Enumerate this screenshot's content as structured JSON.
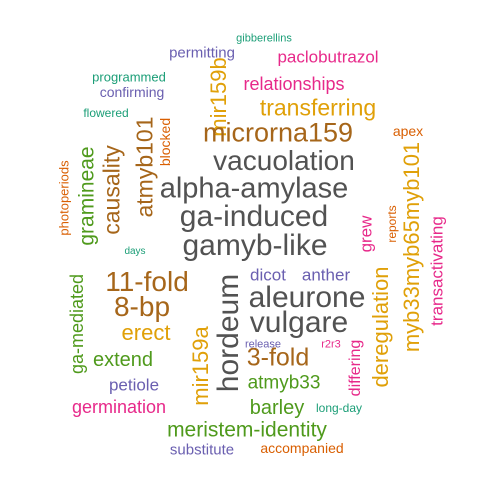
{
  "palette": {
    "gray": "#525252",
    "brown": "#a6661a",
    "gold": "#e0a008",
    "green": "#4f9a1c",
    "teal": "#1b9e77",
    "purple": "#6a5fb0",
    "magenta": "#e7298a",
    "orange": "#d95f02"
  },
  "words": [
    {
      "text": "gibberellins",
      "color": "teal"
    },
    {
      "text": "permitting",
      "color": "purple"
    },
    {
      "text": "paclobutrazol",
      "color": "magenta"
    },
    {
      "text": "programmed",
      "color": "teal"
    },
    {
      "text": "confirming",
      "color": "purple"
    },
    {
      "text": "mir159b",
      "color": "gold"
    },
    {
      "text": "relationships",
      "color": "magenta"
    },
    {
      "text": "flowered",
      "color": "teal"
    },
    {
      "text": "transferring",
      "color": "gold"
    },
    {
      "text": "atmyb101",
      "color": "brown"
    },
    {
      "text": "blocked",
      "color": "orange"
    },
    {
      "text": "microrna159",
      "color": "brown"
    },
    {
      "text": "apex",
      "color": "orange"
    },
    {
      "text": "photoperiods",
      "color": "orange"
    },
    {
      "text": "gramineae",
      "color": "green"
    },
    {
      "text": "causality",
      "color": "brown"
    },
    {
      "text": "vacuolation",
      "color": "gray"
    },
    {
      "text": "days",
      "color": "teal"
    },
    {
      "text": "alpha-amylase",
      "color": "gray"
    },
    {
      "text": "myb33myb65myb101",
      "color": "gold"
    },
    {
      "text": "reports",
      "color": "orange"
    },
    {
      "text": "transactivating",
      "color": "magenta"
    },
    {
      "text": "ga-induced",
      "color": "gray"
    },
    {
      "text": "grew",
      "color": "magenta"
    },
    {
      "text": "gamyb-like",
      "color": "gray"
    },
    {
      "text": "dicot",
      "color": "purple"
    },
    {
      "text": "anther",
      "color": "purple"
    },
    {
      "text": "hordeum",
      "color": "gray"
    },
    {
      "text": "11-fold",
      "color": "brown"
    },
    {
      "text": "aleurone",
      "color": "gray"
    },
    {
      "text": "ga-mediated",
      "color": "green"
    },
    {
      "text": "8-bp",
      "color": "brown"
    },
    {
      "text": "deregulation",
      "color": "gold"
    },
    {
      "text": "vulgare",
      "color": "gray"
    },
    {
      "text": "erect",
      "color": "gold"
    },
    {
      "text": "mir159a",
      "color": "gold"
    },
    {
      "text": "release",
      "color": "purple"
    },
    {
      "text": "r2r3",
      "color": "magenta"
    },
    {
      "text": "differing",
      "color": "magenta"
    },
    {
      "text": "extend",
      "color": "green"
    },
    {
      "text": "3-fold",
      "color": "brown"
    },
    {
      "text": "petiole",
      "color": "purple"
    },
    {
      "text": "atmyb33",
      "color": "green"
    },
    {
      "text": "germination",
      "color": "magenta"
    },
    {
      "text": "barley",
      "color": "green"
    },
    {
      "text": "long-day",
      "color": "teal"
    },
    {
      "text": "meristem-identity",
      "color": "green"
    },
    {
      "text": "substitute",
      "color": "purple"
    },
    {
      "text": "accompanied",
      "color": "orange"
    }
  ]
}
